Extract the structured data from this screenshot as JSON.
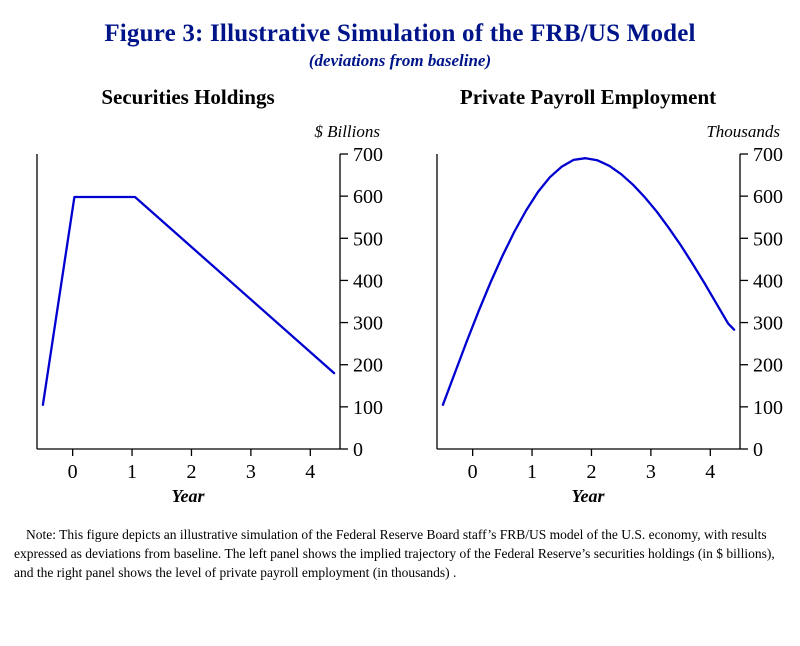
{
  "figure": {
    "title": "Figure 3: Illustrative Simulation of the FRB/US Model",
    "subtitle": "(deviations from baseline)",
    "note": "Note:  This figure depicts an illustrative simulation of the Federal Reserve Board staff’s FRB/US model of the U.S. economy, with results expressed as deviations from baseline.  The left panel shows the implied trajectory of the Federal Reserve’s securities holdings (in $ billions), and the right panel shows the level of private payroll employment (in thousands) ."
  },
  "colors": {
    "title_text": "#00148a",
    "line": "#0000d0",
    "axis": "#000000"
  },
  "chart_data": [
    {
      "type": "line",
      "title": "Securities Holdings",
      "unit_label": "$ Billions",
      "xlabel": "Year",
      "xlim": [
        -0.6,
        4.5
      ],
      "ylim": [
        0,
        700
      ],
      "xticks": [
        0,
        1,
        2,
        3,
        4
      ],
      "yticks": [
        0,
        100,
        200,
        300,
        400,
        500,
        600,
        700
      ],
      "legend": "none",
      "grid": false,
      "series": [
        {
          "name": "Securities holdings (deviation from baseline, $ billions)",
          "x": [
            -0.5,
            0.03,
            1.05,
            4.4
          ],
          "y": [
            105,
            598,
            598,
            180
          ]
        }
      ]
    },
    {
      "type": "line",
      "title": "Private Payroll Employment",
      "unit_label": "Thousands",
      "xlabel": "Year",
      "xlim": [
        -0.6,
        4.5
      ],
      "ylim": [
        0,
        700
      ],
      "xticks": [
        0,
        1,
        2,
        3,
        4
      ],
      "yticks": [
        0,
        100,
        200,
        300,
        400,
        500,
        600,
        700
      ],
      "legend": "none",
      "grid": false,
      "series": [
        {
          "name": "Private payroll employment (deviation from baseline, thousands)",
          "x": [
            -0.5,
            -0.3,
            -0.1,
            0.1,
            0.3,
            0.5,
            0.7,
            0.9,
            1.1,
            1.3,
            1.5,
            1.7,
            1.9,
            2.1,
            2.3,
            2.5,
            2.7,
            2.9,
            3.1,
            3.3,
            3.5,
            3.7,
            3.9,
            4.1,
            4.3,
            4.4
          ],
          "y": [
            105,
            180,
            255,
            327,
            395,
            458,
            515,
            566,
            610,
            645,
            670,
            686,
            690,
            685,
            672,
            652,
            627,
            597,
            563,
            525,
            484,
            440,
            394,
            346,
            298,
            283
          ]
        }
      ]
    }
  ]
}
